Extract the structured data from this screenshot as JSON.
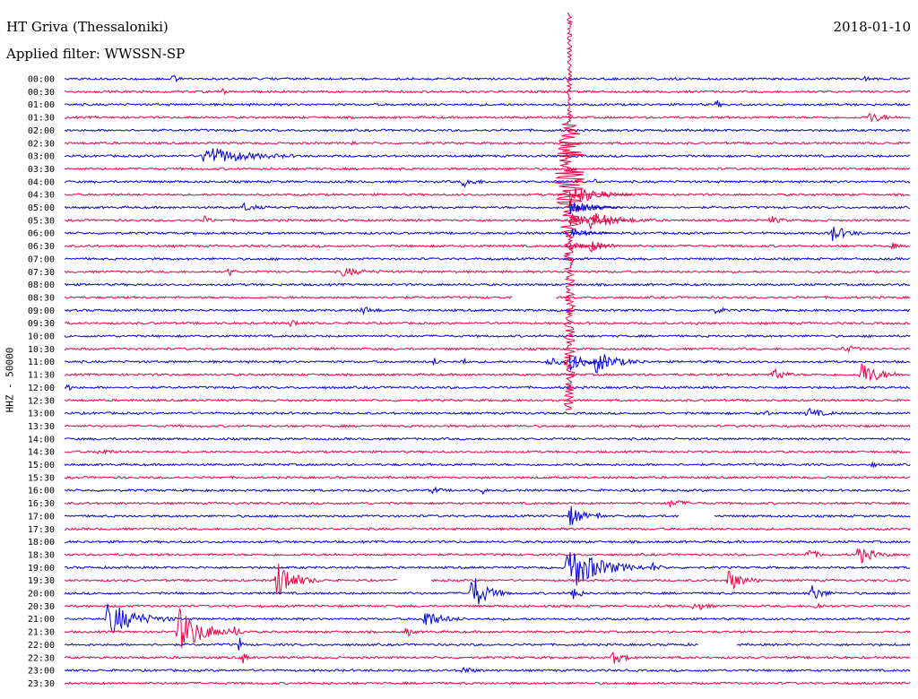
{
  "header": {
    "station": "HT Griva (Thessaloniki)",
    "date": "2018-01-10",
    "filter": "Applied filter: WWSSN-SP"
  },
  "channel_label": "HHZ - 50000",
  "colors": {
    "blue": "#0000dd",
    "red": "#ee0044"
  },
  "chart_data": {
    "type": "line",
    "title": "HT Griva (Thessaloniki)",
    "subtitle": "Applied filter: WWSSN-SP",
    "ylabel": "HHZ - 50000",
    "xlabel": "",
    "grid": false,
    "legend": "none",
    "series_colors": [
      "blue",
      "red"
    ],
    "rows": [
      "00:00",
      "00:30",
      "01:00",
      "01:30",
      "02:00",
      "02:30",
      "03:00",
      "03:30",
      "04:00",
      "04:30",
      "05:00",
      "05:30",
      "06:00",
      "06:30",
      "07:00",
      "07:30",
      "08:00",
      "08:30",
      "09:00",
      "09:30",
      "10:00",
      "10:30",
      "11:00",
      "11:30",
      "12:00",
      "12:30",
      "13:00",
      "13:30",
      "14:00",
      "14:30",
      "15:00",
      "15:30",
      "16:00",
      "16:30",
      "17:00",
      "17:30",
      "18:00",
      "18:30",
      "19:00",
      "19:30",
      "20:00",
      "20:30",
      "21:00",
      "21:30",
      "22:00",
      "22:30",
      "23:00",
      "23:30"
    ],
    "events": [
      {
        "row": 0,
        "minute": 3.8,
        "amp": 6,
        "dur": 0.4
      },
      {
        "row": 0,
        "minute": 28.4,
        "amp": 7,
        "dur": 0.3
      },
      {
        "row": 1,
        "minute": 5.6,
        "amp": 5,
        "dur": 0.2
      },
      {
        "row": 2,
        "minute": 23.1,
        "amp": 6,
        "dur": 0.3
      },
      {
        "row": 3,
        "minute": 28.5,
        "amp": 7,
        "dur": 1.2
      },
      {
        "row": 5,
        "minute": 10.2,
        "amp": 5,
        "dur": 0.2
      },
      {
        "row": 6,
        "minute": 4.9,
        "amp": 12,
        "dur": 3.5
      },
      {
        "row": 8,
        "minute": 14.1,
        "amp": 6,
        "dur": 1.0
      },
      {
        "row": 8,
        "minute": 18.8,
        "amp": 4,
        "dur": 0.3
      },
      {
        "row": 10,
        "minute": 6.3,
        "amp": 5,
        "dur": 1.0
      },
      {
        "row": 10,
        "minute": 18.2,
        "amp": 5,
        "dur": 0.3
      },
      {
        "row": 11,
        "minute": 4.9,
        "amp": 5,
        "dur": 0.6
      },
      {
        "row": 11,
        "minute": 18.6,
        "amp": 10,
        "dur": 2.5
      },
      {
        "row": 11,
        "minute": 25.0,
        "amp": 5,
        "dur": 0.8
      },
      {
        "row": 12,
        "minute": 27.1,
        "amp": 12,
        "dur": 1.3
      },
      {
        "row": 13,
        "minute": 18.6,
        "amp": 7,
        "dur": 1.5
      },
      {
        "row": 13,
        "minute": 29.3,
        "amp": 5,
        "dur": 0.4
      },
      {
        "row": 15,
        "minute": 5.8,
        "amp": 6,
        "dur": 0.4
      },
      {
        "row": 15,
        "minute": 9.8,
        "amp": 5,
        "dur": 1.8
      },
      {
        "row": 18,
        "minute": 10.5,
        "amp": 5,
        "dur": 1.0
      },
      {
        "row": 18,
        "minute": 23.1,
        "amp": 8,
        "dur": 0.4
      },
      {
        "row": 19,
        "minute": 8.0,
        "amp": 7,
        "dur": 0.5
      },
      {
        "row": 19,
        "minute": 22.3,
        "amp": 5,
        "dur": 0.3
      },
      {
        "row": 21,
        "minute": 27.6,
        "amp": 5,
        "dur": 1.0
      },
      {
        "row": 22,
        "minute": 13.1,
        "amp": 6,
        "dur": 0.3
      },
      {
        "row": 22,
        "minute": 14.1,
        "amp": 8,
        "dur": 0.2
      },
      {
        "row": 22,
        "minute": 17.1,
        "amp": 5,
        "dur": 1.2
      },
      {
        "row": 22,
        "minute": 18.8,
        "amp": 14,
        "dur": 1.8
      },
      {
        "row": 23,
        "minute": 25.1,
        "amp": 12,
        "dur": 0.8
      },
      {
        "row": 23,
        "minute": 28.2,
        "amp": 16,
        "dur": 1.6
      },
      {
        "row": 24,
        "minute": 0.1,
        "amp": 6,
        "dur": 0.3
      },
      {
        "row": 26,
        "minute": 24.8,
        "amp": 8,
        "dur": 0.3
      },
      {
        "row": 26,
        "minute": 26.3,
        "amp": 6,
        "dur": 1.3
      },
      {
        "row": 29,
        "minute": 1.2,
        "amp": 5,
        "dur": 0.8
      },
      {
        "row": 30,
        "minute": 28.6,
        "amp": 5,
        "dur": 0.3
      },
      {
        "row": 32,
        "minute": 13.0,
        "amp": 5,
        "dur": 0.6
      },
      {
        "row": 32,
        "minute": 14.8,
        "amp": 7,
        "dur": 0.2
      },
      {
        "row": 33,
        "minute": 21.4,
        "amp": 5,
        "dur": 1.3
      },
      {
        "row": 34,
        "minute": 17.9,
        "amp": 16,
        "dur": 1.0
      },
      {
        "row": 34,
        "minute": 18.9,
        "amp": 5,
        "dur": 0.3
      },
      {
        "row": 37,
        "minute": 26.3,
        "amp": 8,
        "dur": 0.8
      },
      {
        "row": 37,
        "minute": 28.1,
        "amp": 12,
        "dur": 1.3
      },
      {
        "row": 38,
        "minute": 17.8,
        "amp": 30,
        "dur": 2.8
      },
      {
        "row": 38,
        "minute": 20.8,
        "amp": 6,
        "dur": 0.6
      },
      {
        "row": 39,
        "minute": 7.5,
        "amp": 26,
        "dur": 1.5
      },
      {
        "row": 39,
        "minute": 23.5,
        "amp": 14,
        "dur": 1.3
      },
      {
        "row": 40,
        "minute": 14.4,
        "amp": 24,
        "dur": 1.4
      },
      {
        "row": 40,
        "minute": 18.0,
        "amp": 16,
        "dur": 0.5
      },
      {
        "row": 40,
        "minute": 26.4,
        "amp": 12,
        "dur": 1.0
      },
      {
        "row": 41,
        "minute": 22.3,
        "amp": 8,
        "dur": 0.8
      },
      {
        "row": 41,
        "minute": 26.6,
        "amp": 6,
        "dur": 0.5
      },
      {
        "row": 42,
        "minute": 1.5,
        "amp": 22,
        "dur": 2.5
      },
      {
        "row": 42,
        "minute": 12.7,
        "amp": 12,
        "dur": 1.5
      },
      {
        "row": 43,
        "minute": 4.0,
        "amp": 28,
        "dur": 2.2
      },
      {
        "row": 43,
        "minute": 12.1,
        "amp": 8,
        "dur": 0.4
      },
      {
        "row": 43,
        "minute": 6.0,
        "amp": 6,
        "dur": 0.6
      },
      {
        "row": 44,
        "minute": 6.2,
        "amp": 14,
        "dur": 0.2
      },
      {
        "row": 45,
        "minute": 19.4,
        "amp": 8,
        "dur": 1.0
      },
      {
        "row": 45,
        "minute": 6.3,
        "amp": 12,
        "dur": 0.3
      },
      {
        "row": 46,
        "minute": 14.1,
        "amp": 5,
        "dur": 0.8
      }
    ],
    "big_quake": {
      "start_row": 0,
      "end_row": 24,
      "minute": 17.9
    },
    "gaps": [
      {
        "row": 17,
        "minute": 15.9,
        "dur": 1.5
      },
      {
        "row": 34,
        "minute": 21.8,
        "dur": 1.2
      },
      {
        "row": 39,
        "minute": 11.8,
        "dur": 1.2
      },
      {
        "row": 44,
        "minute": 22.5,
        "dur": 1.3
      }
    ]
  }
}
